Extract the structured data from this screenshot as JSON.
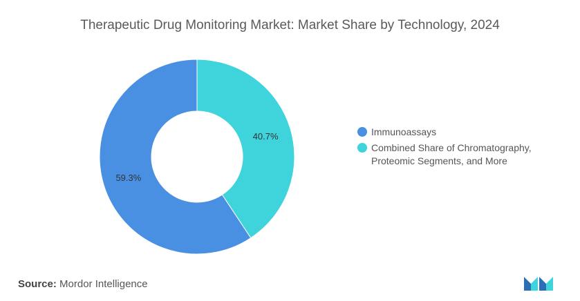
{
  "title": "Therapeutic Drug Monitoring Market: Market Share by Technology, 2024",
  "chart_data": {
    "type": "pie",
    "title": "Therapeutic Drug Monitoring Market: Market Share by Technology, 2024",
    "donut": true,
    "categories": [
      "Immunoassays",
      "Combined Share of Chromatography, Proteomic Segments, and More"
    ],
    "values": [
      59.3,
      40.7
    ],
    "labels": [
      "59.3%",
      "40.7%"
    ],
    "colors": [
      "#4A90E2",
      "#3FD3DB"
    ],
    "legend_position": "right"
  },
  "legend": {
    "items": [
      {
        "label": "Immunoassays",
        "color": "#4A90E2"
      },
      {
        "label": "Combined Share of Chromatography, Proteomic Segments, and More",
        "color": "#3FD3DB"
      }
    ]
  },
  "source": {
    "prefix": "Source:",
    "text": "Mordor Intelligence"
  },
  "logo": {
    "icon": "mordor-intelligence-logo"
  }
}
